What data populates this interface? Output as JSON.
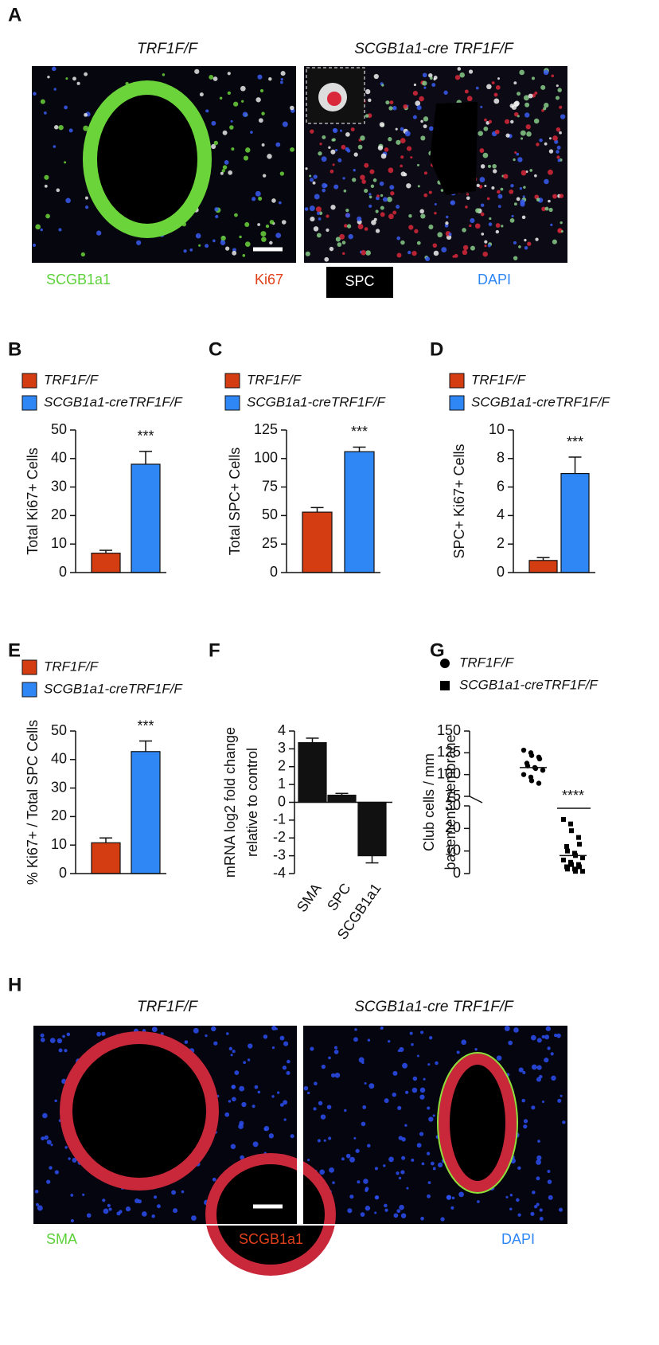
{
  "figure": {
    "panel_a": {
      "letter": "A",
      "titles": [
        "TRF1F/F",
        "SCGB1a1-cre TRF1F/F"
      ],
      "stain_labels": [
        "SCGB1a1",
        "Ki67",
        "SPC",
        "DAPI"
      ]
    },
    "panel_h": {
      "letter": "H",
      "titles": [
        "TRF1F/F",
        "SCGB1a1-cre TRF1F/F"
      ],
      "stain_labels": [
        "SMA",
        "SCGB1a1",
        "DAPI"
      ]
    }
  },
  "chart_data": [
    {
      "type": "bar",
      "panel": "B",
      "ylabel": [
        "Total Ki67+ Cells"
      ],
      "ylim": [
        0,
        50
      ],
      "yticks": [
        0,
        10,
        20,
        30,
        40,
        50
      ],
      "annotation": "***",
      "series": [
        {
          "name": "TRF1F/F",
          "color": "#d43d12",
          "values": [
            6.8
          ],
          "errors": [
            1.0
          ]
        },
        {
          "name": "SCGB1a1-creTRF1F/F",
          "color": "#2f86f5",
          "values": [
            38
          ],
          "errors": [
            4.5
          ]
        }
      ]
    },
    {
      "type": "bar",
      "panel": "C",
      "ylabel": [
        "Total SPC+ Cells"
      ],
      "ylim": [
        0,
        125
      ],
      "yticks": [
        0,
        25,
        50,
        75,
        100,
        125
      ],
      "annotation": "***",
      "series": [
        {
          "name": "TRF1F/F",
          "color": "#d43d12",
          "values": [
            53
          ],
          "errors": [
            4
          ]
        },
        {
          "name": "SCGB1a1-creTRF1F/F",
          "color": "#2f86f5",
          "values": [
            106
          ],
          "errors": [
            4
          ]
        }
      ]
    },
    {
      "type": "bar",
      "panel": "D",
      "ylabel": [
        "SPC+ Ki67+ Cells"
      ],
      "ylim": [
        0,
        10
      ],
      "yticks": [
        0,
        2,
        4,
        6,
        8,
        10
      ],
      "annotation": "***",
      "series": [
        {
          "name": "TRF1F/F",
          "color": "#d43d12",
          "values": [
            0.85
          ],
          "errors": [
            0.2
          ]
        },
        {
          "name": "SCGB1a1-creTRF1F/F",
          "color": "#2f86f5",
          "values": [
            6.95
          ],
          "errors": [
            1.15
          ]
        }
      ]
    },
    {
      "type": "bar",
      "panel": "E",
      "ylabel": [
        "% Ki67+ / Total SPC Cells"
      ],
      "ylim": [
        0,
        50
      ],
      "yticks": [
        0,
        10,
        20,
        30,
        40,
        50
      ],
      "annotation": "***",
      "series": [
        {
          "name": "TRF1F/F",
          "color": "#d43d12",
          "values": [
            10.8
          ],
          "errors": [
            1.7
          ]
        },
        {
          "name": "SCGB1a1-creTRF1F/F",
          "color": "#2f86f5",
          "values": [
            42.8
          ],
          "errors": [
            3.7
          ]
        }
      ]
    },
    {
      "type": "bar",
      "panel": "F",
      "ylabel": [
        "mRNA log2 fold change",
        "relative to control"
      ],
      "ylim": [
        -4,
        4
      ],
      "yticks": [
        -4,
        -3,
        -2,
        -1,
        0,
        1,
        2,
        3,
        4
      ],
      "categories": [
        "SMA",
        "SPC",
        "SCGB1a1"
      ],
      "color": "#111111",
      "values": [
        3.35,
        0.4,
        -3
      ],
      "errors": [
        0.25,
        0.1,
        0.4
      ]
    },
    {
      "type": "strip",
      "panel": "G",
      "ylabel": [
        "Club cells / mm",
        "basement membrane"
      ],
      "annotation": "****",
      "ylim_lower": [
        0,
        30
      ],
      "yticks_lower": [
        0,
        10,
        20,
        30
      ],
      "ylim_upper": [
        75,
        150
      ],
      "yticks_upper": [
        75,
        100,
        125,
        150
      ],
      "series": [
        {
          "name": "TRF1F/F",
          "marker": "circle",
          "color": "#000000",
          "values": [
            128,
            125,
            122,
            120,
            118,
            113,
            110,
            108,
            107,
            105,
            100,
            97,
            93,
            90
          ],
          "center": 108
        },
        {
          "name": "SCGB1a1-creTRF1F/F",
          "marker": "square",
          "color": "#000000",
          "values": [
            24,
            22,
            19,
            16,
            13,
            12,
            10,
            9,
            8,
            7,
            6,
            5,
            4,
            4,
            3,
            3,
            2,
            2,
            1,
            1
          ],
          "center": 8
        }
      ]
    }
  ]
}
